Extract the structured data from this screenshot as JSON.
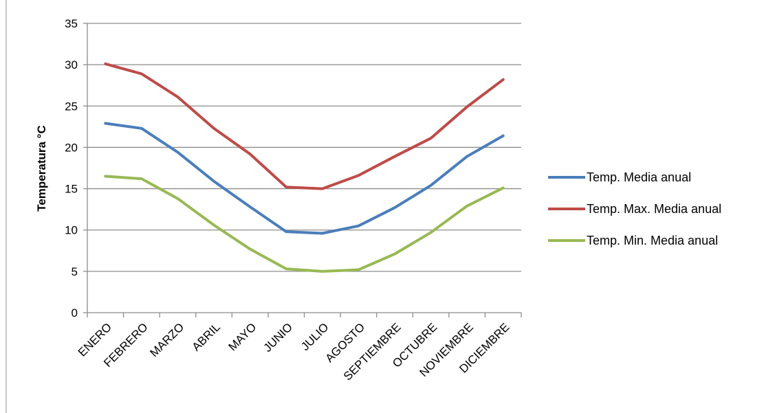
{
  "chart_data": {
    "type": "line",
    "title": "",
    "xlabel": "",
    "ylabel": "Temperatura °C",
    "ylim": [
      0,
      35
    ],
    "yticks": [
      0,
      5,
      10,
      15,
      20,
      25,
      30,
      35
    ],
    "grid": true,
    "legend_position": "right",
    "categories": [
      "ENERO",
      "FEBRERO",
      "MARZO",
      "ABRIL",
      "MAYO",
      "JUNIO",
      "JULIO",
      "AGOSTO",
      "SEPTIEMBRE",
      "OCTUBRE",
      "NOVIEMBRE",
      "DICIEMBRE"
    ],
    "series": [
      {
        "name": "Temp. Media anual",
        "color": "#4a7ebb",
        "values": [
          22.9,
          22.3,
          19.4,
          15.9,
          12.8,
          9.8,
          9.6,
          10.5,
          12.7,
          15.4,
          18.9,
          21.4
        ]
      },
      {
        "name": "Temp. Max. Media anual",
        "color": "#be4b48",
        "values": [
          30.1,
          28.9,
          26.1,
          22.3,
          19.2,
          15.2,
          15.0,
          16.6,
          18.9,
          21.1,
          24.9,
          28.2
        ]
      },
      {
        "name": "Temp. Min. Media anual",
        "color": "#98b954",
        "values": [
          16.5,
          16.2,
          13.8,
          10.6,
          7.7,
          5.3,
          5.0,
          5.2,
          7.1,
          9.7,
          12.9,
          15.1
        ]
      }
    ]
  }
}
